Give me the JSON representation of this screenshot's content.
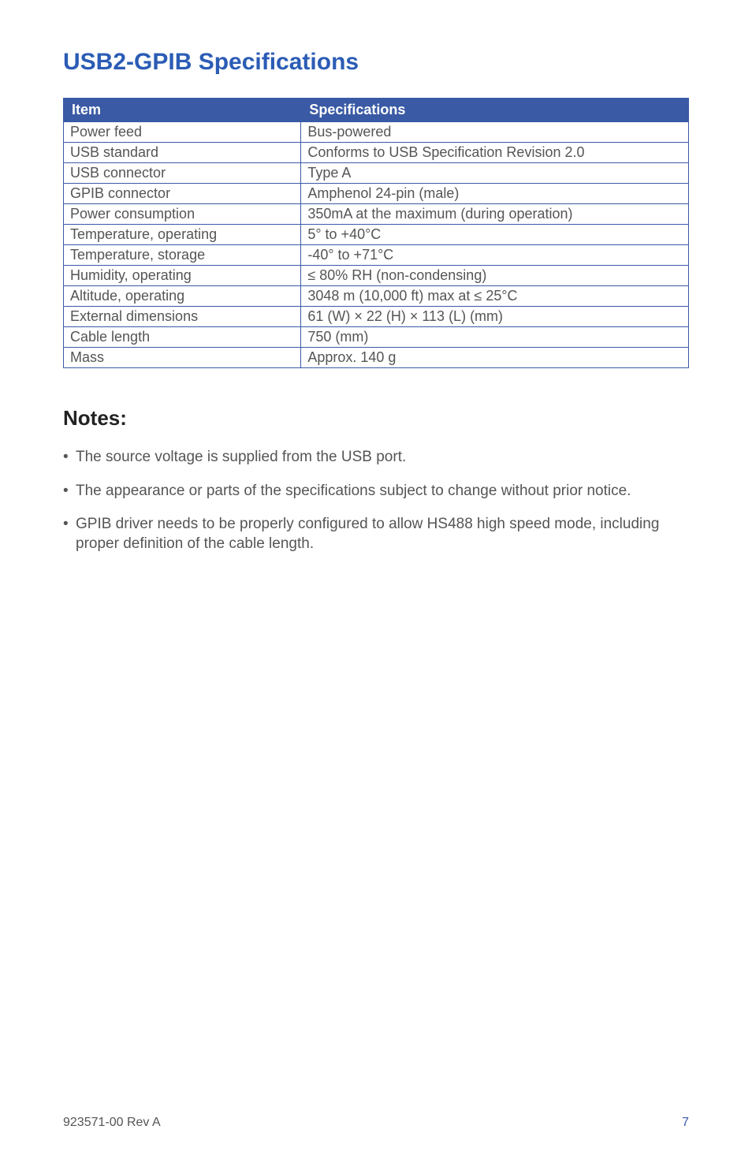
{
  "title": "USB2-GPIB Specifications",
  "title_color": "#2b5cb5",
  "table": {
    "header_bg": "#3a5aa5",
    "columns": [
      "Item",
      "Specifications"
    ],
    "rows": [
      [
        "Power feed",
        "Bus-powered"
      ],
      [
        "USB standard",
        "Conforms to USB Specification Revision 2.0"
      ],
      [
        "USB connector",
        "Type A"
      ],
      [
        "GPIB connector",
        "Amphenol 24-pin (male)"
      ],
      [
        "Power consumption",
        "350mA at the maximum (during operation)"
      ],
      [
        "Temperature, operating",
        "5° to +40°C"
      ],
      [
        "Temperature, storage",
        "-40° to +71°C"
      ],
      [
        "Humidity, operating",
        "≤ 80% RH (non-condensing)"
      ],
      [
        "Altitude, operating",
        "3048 m (10,000 ft) max at ≤ 25°C"
      ],
      [
        "External dimensions",
        "61 (W) × 22 (H) × 113 (L) (mm)"
      ],
      [
        "Cable length",
        "750 (mm)"
      ],
      [
        "Mass",
        "Approx. 140 g"
      ]
    ]
  },
  "notes": {
    "heading": "Notes:",
    "items": [
      "The source voltage is supplied from the USB port.",
      "The appearance or parts of the specifications subject to change without prior notice.",
      "GPIB driver needs to be properly configured to allow HS488 high speed mode, including proper definition of the cable length."
    ]
  },
  "footer": {
    "doc_ref": "923571-00 Rev A",
    "page_num": "7"
  }
}
